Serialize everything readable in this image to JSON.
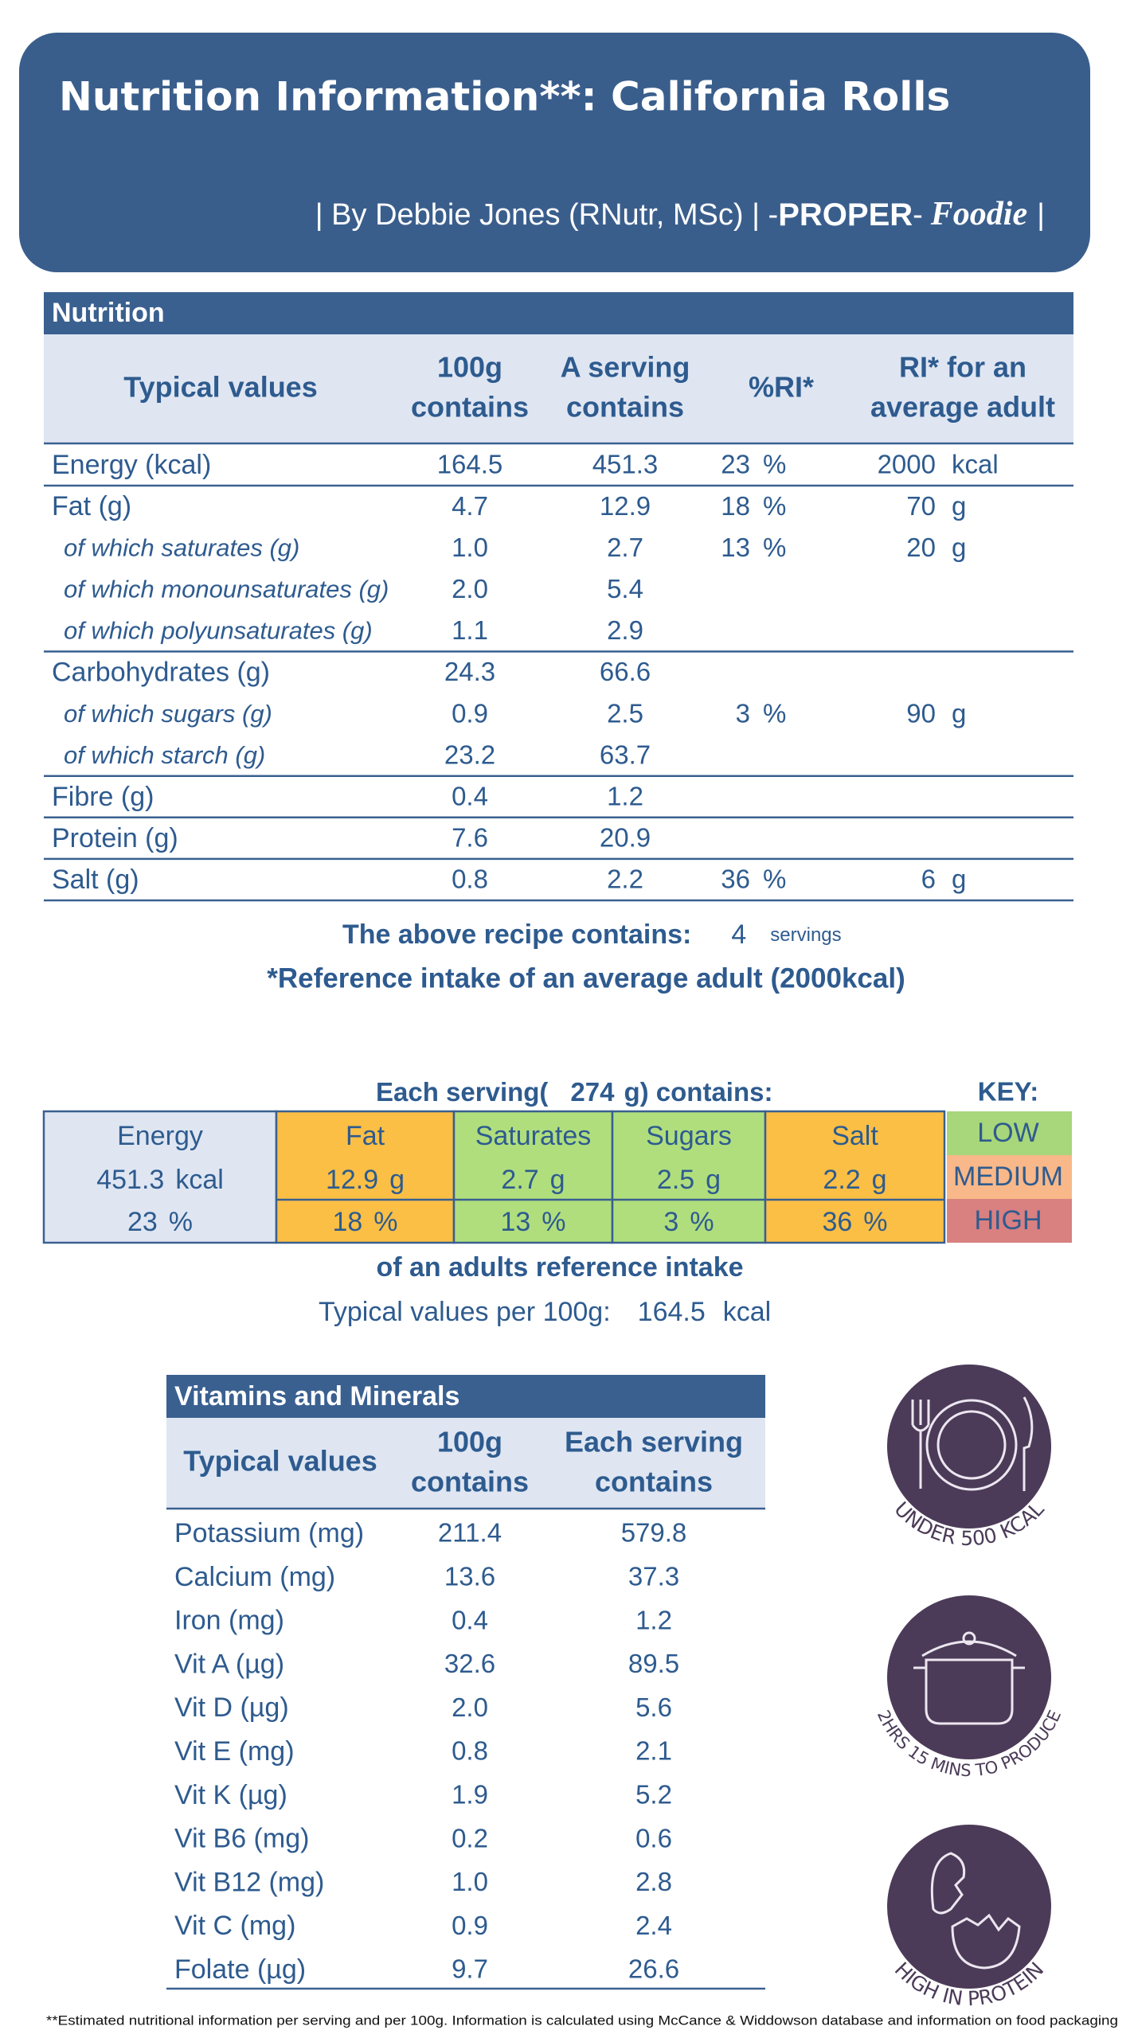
{
  "header": {
    "title": "Nutrition Information**: California Rolls",
    "byline": "| By Debbie Jones (RNutr, MSc) | -",
    "brand": "PROPER",
    "brand_dash": "-",
    "brand_name": "Foodie",
    "byline_end": "|"
  },
  "nutrition": {
    "title": "Nutrition",
    "columns": {
      "typical": "Typical values",
      "per_100g": [
        "100g",
        "contains"
      ],
      "per_serving": [
        "A serving",
        "contains"
      ],
      "ri_pct": "%RI*",
      "ri": [
        "RI* for an",
        "average adult"
      ]
    },
    "groups": [
      {
        "label": "Energy (kcal)",
        "per_100g": "164.5",
        "per_serving": "451.3",
        "ri_pct": "23",
        "ri_pct_unit": "%",
        "ri": "2000",
        "ri_unit": "kcal"
      },
      {
        "label": "Fat (g)",
        "per_100g": "4.7",
        "per_serving": "12.9",
        "ri_pct": "18",
        "ri_pct_unit": "%",
        "ri": "70",
        "ri_unit": "g",
        "sub": [
          {
            "label": "of which saturates (g)",
            "per_100g": "1.0",
            "per_serving": "2.7",
            "ri_pct": "13",
            "ri_pct_unit": "%",
            "ri": "20",
            "ri_unit": "g"
          },
          {
            "label": "of which monounsaturates (g)",
            "per_100g": "2.0",
            "per_serving": "5.4"
          },
          {
            "label": "of which polyunsaturates (g)",
            "per_100g": "1.1",
            "per_serving": "2.9"
          }
        ]
      },
      {
        "label": "Carbohydrates (g)",
        "per_100g": "24.3",
        "per_serving": "66.6",
        "sub": [
          {
            "label": "of which sugars (g)",
            "per_100g": "0.9",
            "per_serving": "2.5",
            "ri_pct": "3",
            "ri_pct_unit": "%",
            "ri": "90",
            "ri_unit": "g"
          },
          {
            "label": "of which starch (g)",
            "per_100g": "23.2",
            "per_serving": "63.7"
          }
        ]
      },
      {
        "label": "Fibre (g)",
        "per_100g": "0.4",
        "per_serving": "1.2"
      },
      {
        "label": "Protein (g)",
        "per_100g": "7.6",
        "per_serving": "20.9"
      },
      {
        "label": "Salt (g)",
        "per_100g": "0.8",
        "per_serving": "2.2",
        "ri_pct": "36",
        "ri_pct_unit": "%",
        "ri": "6",
        "ri_unit": "g"
      }
    ]
  },
  "recipe": {
    "text": "The above recipe contains:",
    "servings": "4",
    "servings_unit": "servings",
    "footnote": "*Reference intake of an average adult (2000kcal)"
  },
  "traffic": {
    "heading_start": "Each serving(",
    "serving_size": "274",
    "heading_end": "g) contains:",
    "key_title": "KEY:",
    "energy": {
      "name": "Energy",
      "value": "451.3",
      "unit": "kcal",
      "pct": "23",
      "pct_unit": "%",
      "color": "#dfe6f2"
    },
    "nutrients": [
      {
        "name": "Fat",
        "value": "12.9",
        "unit": "g",
        "pct": "18",
        "pct_unit": "%",
        "color": "#fbbf45"
      },
      {
        "name": "Saturates",
        "value": "2.7",
        "unit": "g",
        "pct": "13",
        "pct_unit": "%",
        "color": "#b0de7d"
      },
      {
        "name": "Sugars",
        "value": "2.5",
        "unit": "g",
        "pct": "3",
        "pct_unit": "%",
        "color": "#b0de7d"
      },
      {
        "name": "Salt",
        "value": "2.2",
        "unit": "g",
        "pct": "36",
        "pct_unit": "%",
        "color": "#fbbf45"
      }
    ],
    "key": [
      {
        "label": "LOW",
        "color": "#a8d67a"
      },
      {
        "label": "MEDIUM",
        "color": "#f8b889"
      },
      {
        "label": "HIGH",
        "color": "#d98080"
      }
    ],
    "caption": "of an adults reference intake",
    "per100_label": "Typical values per 100g:",
    "per100_value": "164.5",
    "per100_unit": "kcal"
  },
  "vitamins": {
    "title": "Vitamins and Minerals",
    "columns": {
      "typical": "Typical values",
      "per_100g": [
        "100g",
        "contains"
      ],
      "per_serving": [
        "Each serving",
        "contains"
      ]
    },
    "rows": [
      {
        "label": "Potassium (mg)",
        "per_100g": "211.4",
        "per_serving": "579.8"
      },
      {
        "label": "Calcium (mg)",
        "per_100g": "13.6",
        "per_serving": "37.3"
      },
      {
        "label": "Iron (mg)",
        "per_100g": "0.4",
        "per_serving": "1.2"
      },
      {
        "label": "Vit A (µg)",
        "per_100g": "32.6",
        "per_serving": "89.5"
      },
      {
        "label": "Vit D (µg)",
        "per_100g": "2.0",
        "per_serving": "5.6"
      },
      {
        "label": "Vit E (mg)",
        "per_100g": "0.8",
        "per_serving": "2.1"
      },
      {
        "label": "Vit K (µg)",
        "per_100g": "1.9",
        "per_serving": "5.2"
      },
      {
        "label": "Vit B6 (mg)",
        "per_100g": "0.2",
        "per_serving": "0.6"
      },
      {
        "label": "Vit B12 (mg)",
        "per_100g": "1.0",
        "per_serving": "2.8"
      },
      {
        "label": "Vit C (mg)",
        "per_100g": "0.9",
        "per_serving": "2.4"
      },
      {
        "label": "Folate (µg)",
        "per_100g": "9.7",
        "per_serving": "26.6"
      }
    ]
  },
  "icons": [
    {
      "caption": "UNDER 500 KCAL"
    },
    {
      "caption": "2HRS 15 MINS TO PRODUCE"
    },
    {
      "caption": "HIGH IN PROTEIN"
    }
  ],
  "footer": "**Estimated nutritional information per serving and per 100g. Information is calculated using McCance & Widdowson database and information on food packaging"
}
